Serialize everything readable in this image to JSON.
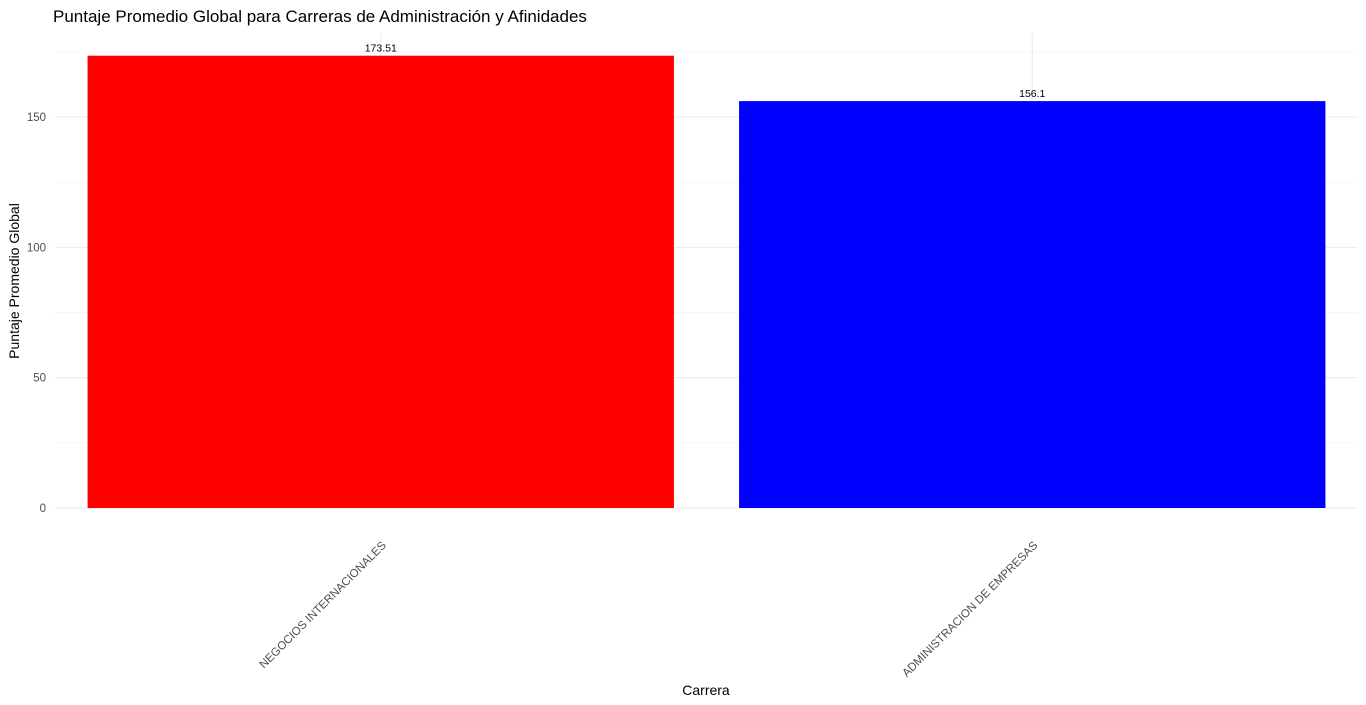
{
  "chart_data": {
    "type": "bar",
    "title": "Puntaje Promedio Global para Carreras de Administración y Afinidades",
    "xlabel": "Carrera",
    "ylabel": "Puntaje Promedio Global",
    "categories": [
      "NEGOCIOS INTERNACIONALES",
      "ADMINISTRACION DE EMPRESAS"
    ],
    "values": [
      173.51,
      156.1
    ],
    "data_labels": [
      "173.51",
      "156.1"
    ],
    "colors": [
      "#ff0000",
      "#0000ff"
    ],
    "yticks": [
      0,
      50,
      100,
      150
    ],
    "ylim": [
      0,
      180
    ],
    "grid": true,
    "legend": "none"
  }
}
